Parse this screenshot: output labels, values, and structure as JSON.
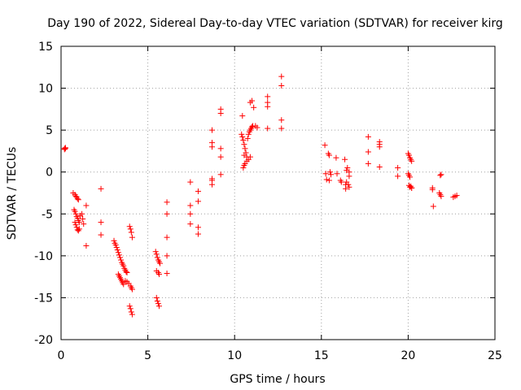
{
  "chart_data": {
    "type": "scatter",
    "title": "Day 190 of 2022, Sidereal Day-to-day VTEC variation (SDTVAR) for receiver kirg",
    "xlabel": "GPS time / hours",
    "ylabel": "SDTVAR / TECUs",
    "xlim": [
      0,
      25
    ],
    "ylim": [
      -20,
      15
    ],
    "xticks": [
      0,
      5,
      10,
      15,
      20,
      25
    ],
    "yticks": [
      -20,
      -15,
      -10,
      -5,
      0,
      5,
      10,
      15
    ],
    "grid": true,
    "marker": "plus",
    "color": "#ff0000",
    "series": [
      {
        "name": "SDTVAR",
        "x": [
          0.2,
          0.2,
          0.25,
          0.25,
          0.7,
          0.8,
          0.85,
          0.9,
          0.95,
          1.0,
          0.75,
          0.8,
          0.85,
          0.9,
          0.95,
          1.0,
          1.05,
          0.8,
          0.85,
          0.9,
          0.95,
          1.0,
          1.05,
          1.1,
          1.2,
          1.25,
          1.3,
          1.45,
          1.45,
          2.3,
          2.3,
          2.3,
          3.05,
          3.1,
          3.15,
          3.2,
          3.25,
          3.3,
          3.35,
          3.4,
          3.45,
          3.5,
          3.55,
          3.6,
          3.65,
          3.7,
          3.75,
          3.8,
          3.3,
          3.35,
          3.4,
          3.45,
          3.5,
          3.55,
          3.6,
          3.7,
          3.8,
          3.9,
          4.0,
          4.05,
          4.1,
          3.95,
          4.0,
          4.05,
          4.1,
          3.95,
          4.0,
          4.05,
          4.1,
          5.45,
          5.5,
          5.55,
          5.6,
          5.65,
          5.7,
          5.5,
          5.6,
          5.65,
          5.5,
          5.55,
          5.6,
          5.65,
          6.1,
          6.1,
          6.1,
          6.1,
          6.1,
          7.45,
          7.45,
          7.45,
          7.45,
          7.9,
          7.9,
          7.9,
          7.9,
          8.7,
          8.7,
          8.7,
          8.7,
          8.7,
          8.7,
          9.2,
          9.2,
          9.2,
          9.2,
          9.2,
          10.4,
          10.45,
          10.5,
          10.55,
          10.6,
          10.65,
          10.7,
          10.75,
          10.8,
          10.85,
          10.9,
          10.95,
          11.0,
          11.05,
          10.5,
          10.55,
          10.6,
          10.7,
          10.8,
          10.9,
          10.9,
          11.0,
          11.1,
          11.2,
          11.3,
          10.45,
          10.55,
          11.9,
          11.9,
          11.9,
          11.9,
          12.7,
          12.7,
          12.7,
          12.7,
          15.2,
          15.25,
          15.4,
          15.45,
          15.5,
          15.55,
          15.3,
          15.45,
          15.85,
          15.9,
          16.1,
          16.15,
          16.35,
          16.4,
          16.4,
          16.45,
          16.5,
          16.55,
          16.6,
          16.6,
          16.6,
          16.45,
          17.7,
          17.7,
          17.7,
          18.35,
          18.35,
          18.35,
          18.35,
          19.4,
          19.4,
          20.0,
          20.05,
          20.1,
          20.15,
          20.2,
          20.0,
          20.05,
          20.1,
          20.15,
          20.2,
          20.05,
          20.1,
          20.2,
          21.4,
          21.4,
          21.45,
          21.8,
          21.85,
          21.9,
          21.85,
          21.9,
          22.6,
          22.7,
          22.8
        ],
        "y": [
          2.8,
          2.7,
          2.9,
          2.8,
          -2.5,
          -2.7,
          -2.9,
          -3.0,
          -3.2,
          -3.3,
          -4.5,
          -4.7,
          -5.0,
          -5.3,
          -5.5,
          -5.8,
          -6.0,
          -6.0,
          -6.3,
          -6.6,
          -6.9,
          -7.0,
          -6.8,
          -5.2,
          -5.0,
          -5.6,
          -6.2,
          -4.0,
          -8.8,
          -2.0,
          -6.0,
          -7.5,
          -8.2,
          -8.5,
          -8.7,
          -9.0,
          -9.3,
          -9.6,
          -9.9,
          -10.2,
          -10.5,
          -10.8,
          -11.0,
          -11.2,
          -11.5,
          -11.7,
          -11.9,
          -12.0,
          -12.2,
          -12.4,
          -12.6,
          -12.8,
          -13.0,
          -13.2,
          -13.4,
          -13.0,
          -13.1,
          -13.3,
          -13.6,
          -13.8,
          -14.0,
          -6.5,
          -6.8,
          -7.2,
          -7.8,
          -16.0,
          -16.3,
          -16.7,
          -17.0,
          -9.5,
          -9.8,
          -10.2,
          -10.5,
          -10.7,
          -10.9,
          -11.8,
          -12.0,
          -12.2,
          -15.0,
          -15.4,
          -15.7,
          -16.0,
          -3.6,
          -5.0,
          -7.8,
          -10.0,
          -12.1,
          -1.2,
          -4.0,
          -5.0,
          -6.2,
          -2.3,
          -3.5,
          -6.6,
          -7.4,
          5.0,
          3.5,
          3.0,
          -0.8,
          -1.0,
          -1.5,
          7.5,
          7.0,
          2.8,
          1.8,
          -0.3,
          4.5,
          4.2,
          3.8,
          3.3,
          2.8,
          2.3,
          1.8,
          4.0,
          4.5,
          4.8,
          5.0,
          5.2,
          5.4,
          5.5,
          0.5,
          0.8,
          1.0,
          1.3,
          1.5,
          1.8,
          8.3,
          8.5,
          7.7,
          5.5,
          5.3,
          6.7,
          2.0,
          9.0,
          8.3,
          7.8,
          5.2,
          11.4,
          10.3,
          6.2,
          5.2,
          3.2,
          -0.2,
          2.2,
          2.0,
          0.0,
          -0.3,
          -0.9,
          -1.0,
          1.7,
          -0.2,
          -1.0,
          -1.2,
          1.5,
          -1.5,
          -2.0,
          0.2,
          0.5,
          -1.5,
          -1.8,
          0.0,
          -0.5,
          -1.2,
          4.2,
          2.4,
          1.0,
          3.6,
          3.3,
          3.0,
          0.6,
          0.5,
          -0.5,
          2.2,
          2.0,
          1.7,
          1.5,
          1.3,
          -0.2,
          -0.4,
          -0.6,
          -1.7,
          -1.9,
          -1.6,
          -1.8,
          -1.9,
          -1.9,
          -2.1,
          -4.1,
          -2.5,
          -2.7,
          -2.9,
          -0.4,
          -0.3,
          -3.0,
          -2.9,
          -2.8
        ]
      }
    ]
  }
}
